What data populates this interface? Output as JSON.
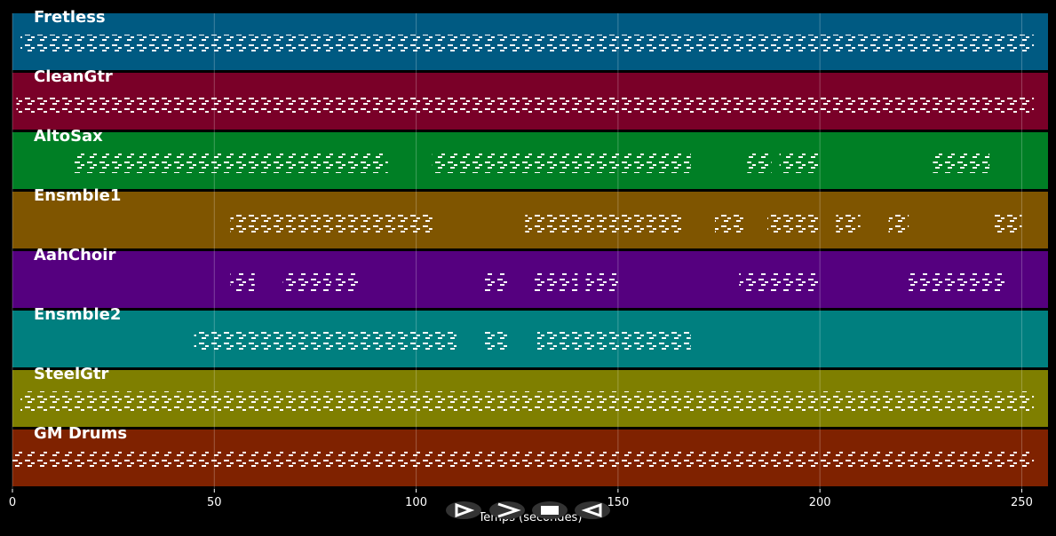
{
  "chart_data": {
    "type": "pianoroll",
    "x_label": "Temps (secondes)",
    "xlim": [
      0,
      256.5
    ],
    "xticks": [
      0,
      50,
      100,
      150,
      200,
      250
    ],
    "grid": true,
    "tracks": [
      {
        "name": "Fretless",
        "color": "#005a82",
        "spans": [
          [
            2,
            253
          ]
        ]
      },
      {
        "name": "CleanGtr",
        "color": "#7a0028",
        "spans": [
          [
            1,
            253
          ]
        ]
      },
      {
        "name": "AltoSax",
        "color": "#007f25",
        "spans": [
          [
            15,
            93
          ],
          [
            104,
            168
          ],
          [
            182,
            188
          ],
          [
            190,
            200
          ],
          [
            228,
            242
          ]
        ]
      },
      {
        "name": "Ensmble1",
        "color": "#7f5500",
        "spans": [
          [
            54,
            104
          ],
          [
            127,
            166
          ],
          [
            174,
            181
          ],
          [
            187,
            200
          ],
          [
            204,
            210
          ],
          [
            217,
            222
          ],
          [
            243,
            250
          ]
        ]
      },
      {
        "name": "AahChoir",
        "color": "#55007f",
        "spans": [
          [
            54,
            60
          ],
          [
            67,
            79
          ],
          [
            80,
            86
          ],
          [
            117,
            123
          ],
          [
            129,
            140
          ],
          [
            142,
            150
          ],
          [
            180,
            200
          ],
          [
            222,
            246
          ]
        ]
      },
      {
        "name": "Ensmble2",
        "color": "#007f7f",
        "spans": [
          [
            45,
            110
          ],
          [
            117,
            123
          ],
          [
            130,
            168
          ]
        ]
      },
      {
        "name": "SteelGtr",
        "color": "#7f7f00",
        "spans": [
          [
            2,
            253
          ]
        ]
      },
      {
        "name": "GM Drums",
        "color": "#7f2200",
        "spans": [
          [
            0,
            253
          ]
        ]
      }
    ]
  }
}
